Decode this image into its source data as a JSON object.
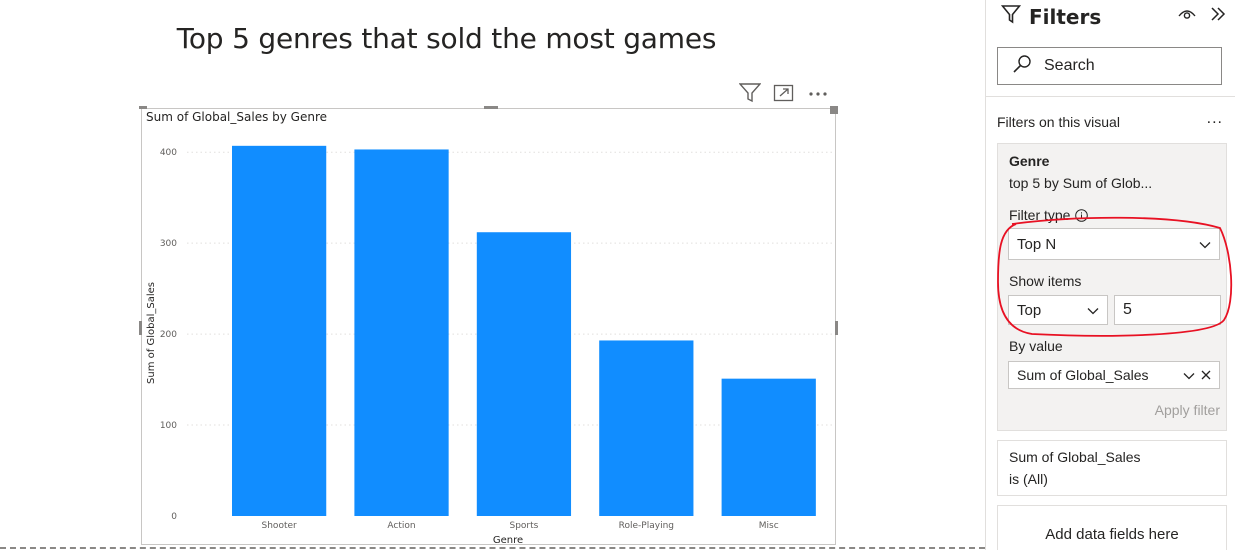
{
  "report": {
    "title": "Top 5 genres that sold the most games"
  },
  "visual_header": {
    "icons": [
      "filter-icon",
      "focus-mode-icon",
      "more-options-icon"
    ]
  },
  "chart_data": {
    "type": "bar",
    "title": "Sum of Global_Sales by Genre",
    "xlabel": "Genre",
    "ylabel": "Sum of Global_Sales",
    "categories": [
      "Shooter",
      "Action",
      "Sports",
      "Role-Playing",
      "Misc"
    ],
    "values": [
      407,
      403,
      312,
      193,
      151
    ],
    "ylim": [
      0,
      420
    ],
    "yticks": [
      0,
      100,
      200,
      300,
      400
    ],
    "bar_color": "#118dff",
    "grid": true
  },
  "filters_pane": {
    "title": "Filters",
    "search_placeholder": "Search",
    "section_label": "Filters on this visual",
    "section_more": "...",
    "genre_card": {
      "field": "Genre",
      "summary": "top 5 by Sum of Glob...",
      "filter_type_label": "Filter type",
      "filter_type_value": "Top N",
      "show_items_label": "Show items",
      "show_items_direction": "Top",
      "show_items_count": "5",
      "by_value_label": "By value",
      "by_value_field": "Sum of Global_Sales",
      "apply_label": "Apply filter"
    },
    "sum_card": {
      "field": "Sum of Global_Sales",
      "summary": "is (All)"
    },
    "add_fields_label": "Add data fields here"
  },
  "annotation": {
    "color": "#e81123"
  }
}
